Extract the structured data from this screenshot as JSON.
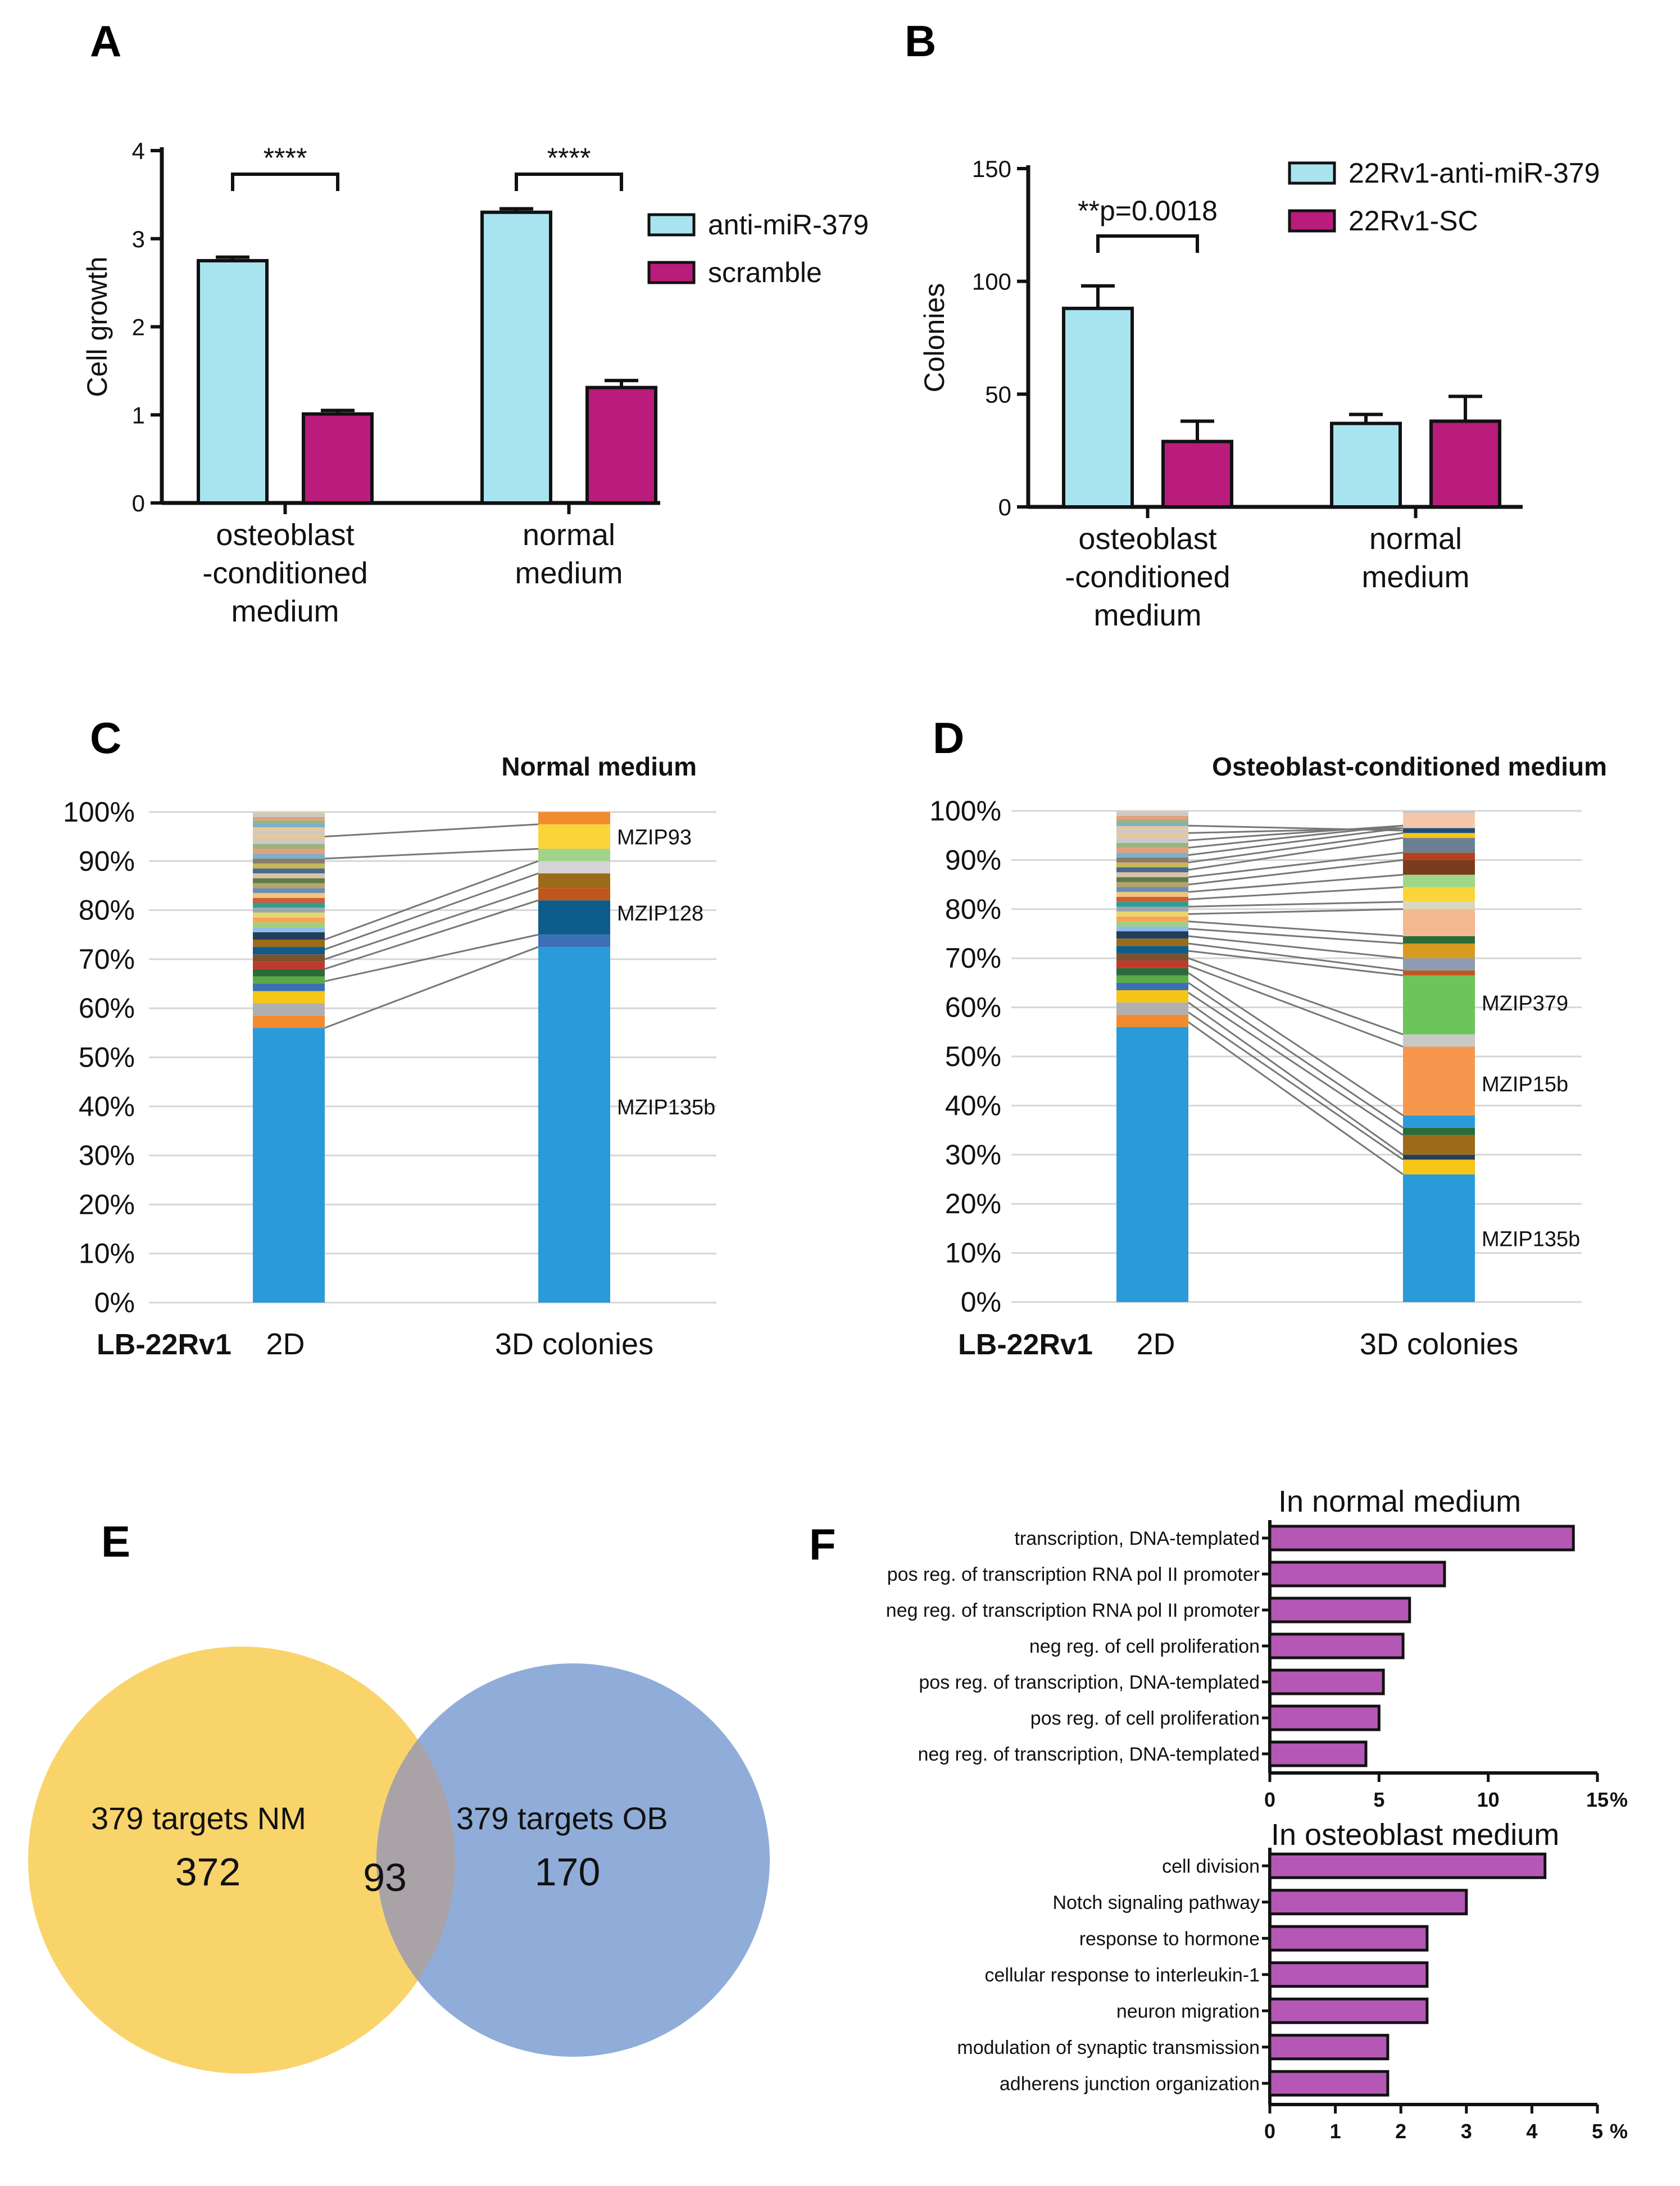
{
  "figure": {
    "panels": {
      "a": "A",
      "b": "B",
      "c": "C",
      "d": "D",
      "e": "E",
      "f": "F"
    }
  },
  "chart_data": [
    {
      "id": "A",
      "type": "bar",
      "title": "",
      "xlabel": "",
      "ylabel": "Cell growth",
      "ylim": [
        0,
        4
      ],
      "yticks": [
        "0",
        "1",
        "2",
        "3",
        "4"
      ],
      "categories": [
        "osteoblast\n-conditioned\nmedium",
        "normal\nmedium"
      ],
      "category_lines": [
        [
          "osteoblast",
          "-conditioned",
          "medium"
        ],
        [
          "normal",
          "medium"
        ]
      ],
      "series": [
        {
          "name": "anti-miR-379",
          "color": "#a8e4ef",
          "values": [
            2.75,
            3.3
          ],
          "errors": [
            0.04,
            0.04
          ]
        },
        {
          "name": "scramble",
          "color": "#b91c7a",
          "values": [
            1.01,
            1.31
          ],
          "errors": [
            0.04,
            0.08
          ]
        }
      ],
      "annotations": [
        "****",
        "****"
      ]
    },
    {
      "id": "B",
      "type": "bar",
      "title": "",
      "xlabel": "",
      "ylabel": "Colonies",
      "ylim": [
        0,
        150
      ],
      "yticks": [
        "0",
        "50",
        "100",
        "150"
      ],
      "categories": [
        "osteoblast\n-conditioned\nmedium",
        "normal\nmedium"
      ],
      "category_lines": [
        [
          "osteoblast",
          "-conditioned",
          "medium"
        ],
        [
          "normal",
          "medium"
        ]
      ],
      "series": [
        {
          "name": "22Rv1-anti-miR-379",
          "color": "#a8e4ef",
          "values": [
            88,
            37
          ],
          "errors": [
            10,
            4
          ]
        },
        {
          "name": "22Rv1-SC",
          "color": "#b91c7a",
          "values": [
            29,
            38
          ],
          "errors": [
            9,
            11
          ]
        }
      ],
      "annotations": [
        "**p=0.0018"
      ]
    },
    {
      "id": "C",
      "type": "bar",
      "title": "Normal medium",
      "yticks": [
        "0%",
        "10%",
        "20%",
        "30%",
        "40%",
        "50%",
        "60%",
        "70%",
        "80%",
        "90%",
        "100%"
      ],
      "ylim": [
        0,
        100
      ],
      "row_label": "LB-22Rv1",
      "categories": [
        "2D",
        "3D colonies"
      ],
      "stack_2d": [
        {
          "pct": 56,
          "color": "#2a9ad8"
        },
        {
          "pct": 2.5,
          "color": "#f28a2e"
        },
        {
          "pct": 2.5,
          "color": "#b0b0b0"
        },
        {
          "pct": 2.5,
          "color": "#f5c518"
        },
        {
          "pct": 1.5,
          "color": "#3b6fb6"
        },
        {
          "pct": 1.5,
          "color": "#5aaa46"
        },
        {
          "pct": 1.5,
          "color": "#2b6b3a"
        },
        {
          "pct": 1.5,
          "color": "#c0392b"
        },
        {
          "pct": 1.5,
          "color": "#7a5230"
        },
        {
          "pct": 1.5,
          "color": "#0d5c8a"
        },
        {
          "pct": 1.5,
          "color": "#9c6b1a"
        },
        {
          "pct": 1.5,
          "color": "#233d5c"
        },
        {
          "pct": 1,
          "color": "#8fbce6"
        },
        {
          "pct": 1,
          "color": "#a0d07a"
        },
        {
          "pct": 1,
          "color": "#f7a35c"
        },
        {
          "pct": 1,
          "color": "#e9d66b"
        },
        {
          "pct": 1,
          "color": "#9aa7b1"
        },
        {
          "pct": 1,
          "color": "#2f9e8f"
        },
        {
          "pct": 1,
          "color": "#cf5c36"
        },
        {
          "pct": 1,
          "color": "#f2c57c"
        },
        {
          "pct": 1,
          "color": "#6b8fb3"
        },
        {
          "pct": 1,
          "color": "#b7a36b"
        },
        {
          "pct": 1,
          "color": "#5e7d4a"
        },
        {
          "pct": 1,
          "color": "#d9c2a7"
        },
        {
          "pct": 1,
          "color": "#4a6a8a"
        },
        {
          "pct": 1,
          "color": "#c7b65a"
        },
        {
          "pct": 1,
          "color": "#8c7a6b"
        },
        {
          "pct": 1,
          "color": "#7fb0c9"
        },
        {
          "pct": 1,
          "color": "#e3a07a"
        },
        {
          "pct": 1,
          "color": "#9bb37d"
        },
        {
          "pct": 1,
          "color": "#c9c9c9"
        },
        {
          "pct": 1,
          "color": "#e6c79a"
        }
      ],
      "stack_3d": [
        {
          "pct": 72.5,
          "color": "#2a9ad8"
        },
        {
          "pct": 2.5,
          "color": "#3b6fb6"
        },
        {
          "pct": 7,
          "color": "#0d5c8a"
        },
        {
          "pct": 2.5,
          "color": "#c0561c"
        },
        {
          "pct": 3,
          "color": "#9c6b1a"
        },
        {
          "pct": 2.5,
          "color": "#d4d4d4"
        },
        {
          "pct": 2.5,
          "color": "#9fd48a"
        },
        {
          "pct": 5,
          "color": "#f9d53a"
        },
        {
          "pct": 2.5,
          "color": "#f28a2e"
        }
      ],
      "links_from": [
        56,
        65.5,
        68,
        70,
        72,
        74,
        90.5,
        95
      ],
      "links_to": [
        72.5,
        75,
        82,
        84.5,
        87.5,
        90,
        92.5,
        97.5
      ],
      "clone_labels": [
        {
          "text": "MZIP93",
          "y": 95
        },
        {
          "text": "MZIP128",
          "y": 79.5
        },
        {
          "text": "MZIP135b",
          "y": 40
        }
      ]
    },
    {
      "id": "D",
      "type": "bar",
      "title": "Osteoblast-conditioned medium",
      "yticks": [
        "0%",
        "10%",
        "20%",
        "30%",
        "40%",
        "50%",
        "60%",
        "70%",
        "80%",
        "90%",
        "100%"
      ],
      "ylim": [
        0,
        100
      ],
      "row_label": "LB-22Rv1",
      "categories": [
        "2D",
        "3D colonies"
      ],
      "stack_3d": [
        {
          "pct": 26,
          "color": "#2a9ad8"
        },
        {
          "pct": 3,
          "color": "#f5c518"
        },
        {
          "pct": 1,
          "color": "#233d5c"
        },
        {
          "pct": 4,
          "color": "#9c6b1a"
        },
        {
          "pct": 1.5,
          "color": "#2b6b3a"
        },
        {
          "pct": 2.5,
          "color": "#2a9ad8"
        },
        {
          "pct": 14,
          "color": "#f7974e"
        },
        {
          "pct": 2.5,
          "color": "#c9c9c9"
        },
        {
          "pct": 12,
          "color": "#6cc45a"
        },
        {
          "pct": 1,
          "color": "#c0561c"
        },
        {
          "pct": 2.5,
          "color": "#8e9bb0"
        },
        {
          "pct": 3,
          "color": "#d99a20"
        },
        {
          "pct": 1.5,
          "color": "#2b6b3a"
        },
        {
          "pct": 5.5,
          "color": "#f6b890"
        },
        {
          "pct": 1.5,
          "color": "#d8d8c0"
        },
        {
          "pct": 3,
          "color": "#f9d53a"
        },
        {
          "pct": 2.5,
          "color": "#a0d88a"
        },
        {
          "pct": 3,
          "color": "#7a3b1e"
        },
        {
          "pct": 1.5,
          "color": "#b5401e"
        },
        {
          "pct": 3,
          "color": "#6b7f94"
        },
        {
          "pct": 1,
          "color": "#f5c518"
        },
        {
          "pct": 1,
          "color": "#1f4e79"
        },
        {
          "pct": 3,
          "color": "#f6c7a8"
        }
      ],
      "links_from": [
        57,
        59,
        61,
        63,
        65,
        67,
        68.5,
        70,
        71.5,
        73,
        74.5,
        76,
        77.5,
        79,
        80.5,
        82,
        83.5,
        85,
        86.5,
        88,
        89.5,
        91,
        92.5,
        94,
        95.5,
        97
      ],
      "links_to": [
        26,
        29,
        30,
        34,
        35.5,
        38,
        52,
        54.5,
        66.5,
        67.5,
        70,
        73,
        74.5,
        80,
        81.5,
        84.5,
        87,
        90,
        91.5,
        94.5,
        95.5,
        96.5,
        97,
        97,
        96.5,
        96
      ],
      "clone_labels": [
        {
          "text": "MZIP379",
          "y": 61
        },
        {
          "text": "MZIP15b",
          "y": 44.5
        },
        {
          "text": "MZIP135b",
          "y": 13
        }
      ]
    },
    {
      "id": "F1",
      "type": "bar",
      "orientation": "horizontal",
      "title": "In normal medium",
      "categories": [
        "transcription, DNA-templated",
        "pos reg. of transcription RNA pol II promoter",
        "neg reg. of transcription RNA pol II promoter",
        "neg reg. of cell proliferation",
        "pos reg. of transcription, DNA-templated",
        "pos reg. of cell proliferation",
        "neg reg. of transcription, DNA-templated"
      ],
      "values": [
        13.9,
        8.0,
        6.4,
        6.1,
        5.2,
        5.0,
        4.4
      ],
      "xlim": [
        0,
        15
      ],
      "xticks": [
        "0",
        "5",
        "10",
        "15"
      ],
      "unit": "%",
      "color": "#b558b5"
    },
    {
      "id": "F2",
      "type": "bar",
      "orientation": "horizontal",
      "title": "In osteoblast medium",
      "categories": [
        "cell division",
        "Notch signaling pathway",
        "response to hormone",
        "cellular response to interleukin-1",
        "neuron migration",
        "modulation of synaptic transmission",
        "adherens junction organization"
      ],
      "values": [
        4.2,
        3.0,
        2.4,
        2.4,
        2.4,
        1.8,
        1.8
      ],
      "xlim": [
        0,
        5
      ],
      "xticks": [
        "0",
        "1",
        "2",
        "3",
        "4",
        "5"
      ],
      "unit": "%",
      "color": "#b558b5"
    }
  ],
  "venn": {
    "left": {
      "label_num": "379",
      "label_text": "targets NM",
      "count": "372",
      "color": "#f9d46b"
    },
    "right": {
      "label_num": "379",
      "label_text": "targets OB",
      "count": "170",
      "color": "#8fadd8"
    },
    "overlap": {
      "count": "93",
      "color": "#a9a3a8"
    }
  }
}
